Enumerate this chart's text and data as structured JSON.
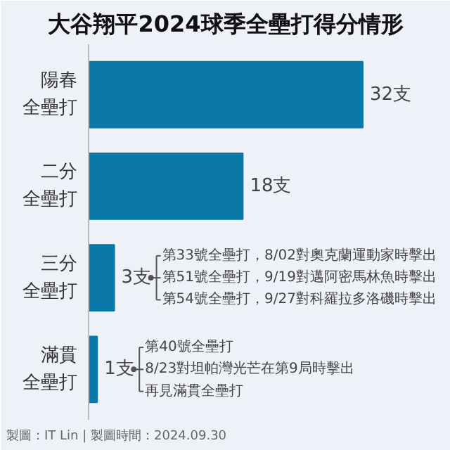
{
  "chart_data": {
    "type": "bar",
    "orientation": "horizontal",
    "title": "大谷翔平2024球季全壘打得分情形",
    "categories": [
      "陽春全壘打",
      "二分全壘打",
      "三分全壘打",
      "滿貫全壘打"
    ],
    "values": [
      32,
      18,
      3,
      1
    ],
    "value_labels": [
      "32支",
      "18支",
      "3支",
      "1支"
    ],
    "color": "#0a78a8",
    "grid": false,
    "annotations": [
      "第33號全壘打，8/02對奧克蘭運動家時擊出",
      "第51號全壘打，9/19對邁阿密馬林魚時擊出",
      "第54號全壘打，9/27對科羅拉多洛磯時擊出",
      "第40號全壘打",
      "8/23對坦帕灣光芒在第9局時擊出",
      "再見滿貫全壘打",
      "製圖：IT Lin | 製圖時間：2024.09.30"
    ]
  }
}
